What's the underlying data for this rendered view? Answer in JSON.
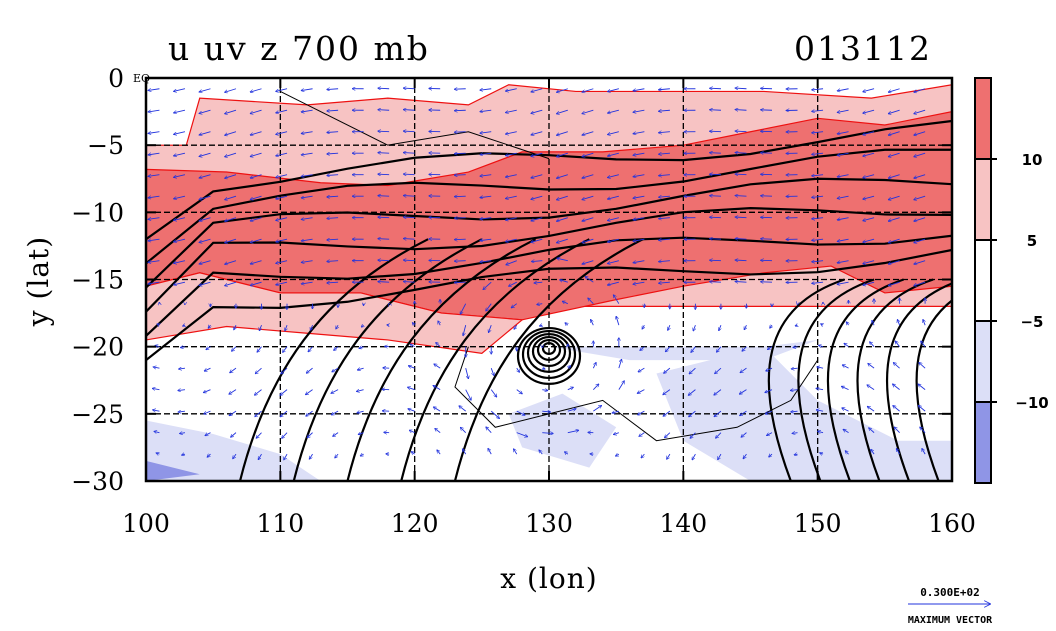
{
  "chart_data": {
    "type": "heatmap",
    "title_left": "u uv z 700 mb",
    "title_right": "013112",
    "xlabel": "x (lon)",
    "ylabel": "y (lat)",
    "xlim": [
      100,
      160
    ],
    "ylim": [
      -30,
      0
    ],
    "x_ticks": [
      100,
      110,
      120,
      130,
      140,
      150,
      160
    ],
    "y_ticks": [
      0,
      -5,
      -10,
      -15,
      -20,
      -25,
      -30
    ],
    "y_tick_labels": [
      "0",
      "−5",
      "−10",
      "−15",
      "−20",
      "−25",
      "−30"
    ],
    "eq_label": "EQ",
    "grid": true,
    "grid_lines_x": [
      110,
      120,
      130,
      140,
      150
    ],
    "grid_lines_y": [
      -5,
      -10,
      -15,
      -20,
      -25
    ],
    "colorbar": {
      "levels": [
        -10,
        -5,
        5,
        10
      ],
      "labels": [
        "−10",
        "−5",
        "5",
        "10"
      ],
      "colors": [
        "#8f95e6",
        "#dcdff7",
        "#ffffff",
        "#f7c3c3",
        "#ee7070"
      ]
    },
    "u_field_bands": [
      {
        "lat_from": 0,
        "lat_to": -6.5,
        "u_class": "5 to 10"
      },
      {
        "lat_from": -6.5,
        "lat_to": -15.5,
        "u_class": ">10"
      },
      {
        "lat_from": -15.5,
        "lat_to": -19.5,
        "u_class": "5 to 10"
      },
      {
        "lat_from": -19.5,
        "lat_to": -26,
        "u_class": "-5 to 5"
      },
      {
        "lat_from": -26,
        "lat_to": -30,
        "u_class": "-10 to -5 / < -10"
      }
    ],
    "low_center": {
      "lon": 130,
      "lat": -20
    },
    "reference_vector": {
      "value_label": "0.300E+02",
      "caption": "MAXIMUM VECTOR"
    },
    "colors": {
      "contour": "#000000",
      "wind": "#2233dd",
      "red_contour": "#ee1111"
    }
  }
}
